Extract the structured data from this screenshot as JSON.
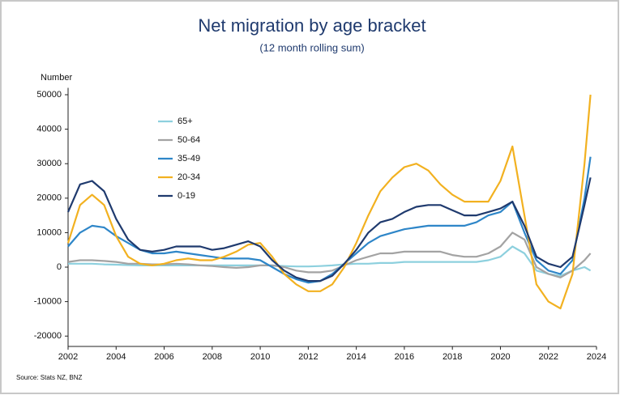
{
  "chart_data": {
    "type": "line",
    "title": "Net migration by age bracket",
    "subtitle": "(12 month rolling sum)",
    "y_label": "Number",
    "source": "Source: Stats NZ, BNZ",
    "legend": "upper left",
    "x": [
      2002,
      2002.5,
      2003,
      2003.5,
      2004,
      2004.5,
      2005,
      2005.5,
      2006,
      2006.5,
      2007,
      2007.5,
      2008,
      2008.5,
      2009,
      2009.5,
      2010,
      2010.5,
      2011,
      2011.5,
      2012,
      2012.5,
      2013,
      2013.5,
      2014,
      2014.5,
      2015,
      2015.5,
      2016,
      2016.5,
      2017,
      2017.5,
      2018,
      2018.5,
      2019,
      2019.5,
      2020,
      2020.5,
      2021,
      2021.5,
      2022,
      2022.5,
      2023,
      2023.5,
      2023.75
    ],
    "series": [
      {
        "name": "65+",
        "color": "#8dd0de",
        "values": [
          1000,
          1000,
          1000,
          800,
          700,
          600,
          500,
          500,
          500,
          500,
          500,
          500,
          500,
          500,
          500,
          500,
          500,
          500,
          300,
          200,
          200,
          300,
          500,
          800,
          1000,
          1000,
          1200,
          1200,
          1500,
          1500,
          1500,
          1500,
          1500,
          1500,
          1500,
          2000,
          3000,
          6000,
          4000,
          -1000,
          -2000,
          -2500,
          -1000,
          0,
          -1000
        ]
      },
      {
        "name": "50-64",
        "color": "#a3a3a3",
        "values": [
          1500,
          2000,
          2000,
          1800,
          1500,
          1000,
          1000,
          800,
          800,
          1000,
          800,
          500,
          300,
          0,
          -200,
          0,
          500,
          500,
          0,
          -1000,
          -1500,
          -1500,
          -1000,
          500,
          2000,
          3000,
          4000,
          4000,
          4500,
          4500,
          4500,
          4500,
          3500,
          3000,
          3000,
          4000,
          6000,
          10000,
          8000,
          0,
          -2000,
          -3000,
          -1000,
          2000,
          4000
        ]
      },
      {
        "name": "35-49",
        "color": "#2e86c8",
        "values": [
          6000,
          10000,
          12000,
          11500,
          9000,
          7000,
          5000,
          4000,
          4000,
          4500,
          4000,
          3500,
          3000,
          2500,
          2500,
          2500,
          2000,
          0,
          -2000,
          -3500,
          -4500,
          -4000,
          -2000,
          1000,
          4000,
          7000,
          9000,
          10000,
          11000,
          11500,
          12000,
          12000,
          12000,
          12000,
          13000,
          15000,
          16000,
          19000,
          10000,
          2000,
          -1000,
          -2000,
          2000,
          20000,
          32000
        ]
      },
      {
        "name": "20-34",
        "color": "#f2b120",
        "values": [
          7000,
          18000,
          21000,
          18000,
          9000,
          3000,
          1000,
          500,
          1000,
          2000,
          2500,
          2000,
          2000,
          3000,
          4500,
          6500,
          7000,
          3000,
          -2000,
          -5000,
          -7000,
          -7000,
          -5000,
          0,
          7000,
          15000,
          22000,
          26000,
          29000,
          30000,
          28000,
          24000,
          21000,
          19000,
          19000,
          19000,
          25000,
          35000,
          15000,
          -5000,
          -10000,
          -12000,
          -2000,
          30000,
          50000
        ]
      },
      {
        "name": "0-19",
        "color": "#1f3a6e",
        "values": [
          16000,
          24000,
          25000,
          22000,
          14000,
          8000,
          5000,
          4500,
          5000,
          6000,
          6000,
          6000,
          5000,
          5500,
          6500,
          7500,
          6000,
          2000,
          -1000,
          -3000,
          -4000,
          -4000,
          -2500,
          1000,
          5000,
          10000,
          13000,
          14000,
          16000,
          17500,
          18000,
          18000,
          16500,
          15000,
          15000,
          16000,
          17000,
          19000,
          12000,
          3000,
          1000,
          0,
          3000,
          18000,
          26000
        ]
      }
    ],
    "xlim": [
      2002,
      2024
    ],
    "xticks": [
      2002,
      2004,
      2006,
      2008,
      2010,
      2012,
      2014,
      2016,
      2018,
      2020,
      2022,
      2024
    ],
    "ylim": [
      -23000,
      52000
    ],
    "yticks": [
      -20000,
      -10000,
      0,
      10000,
      20000,
      30000,
      40000,
      50000
    ],
    "grid": false
  }
}
